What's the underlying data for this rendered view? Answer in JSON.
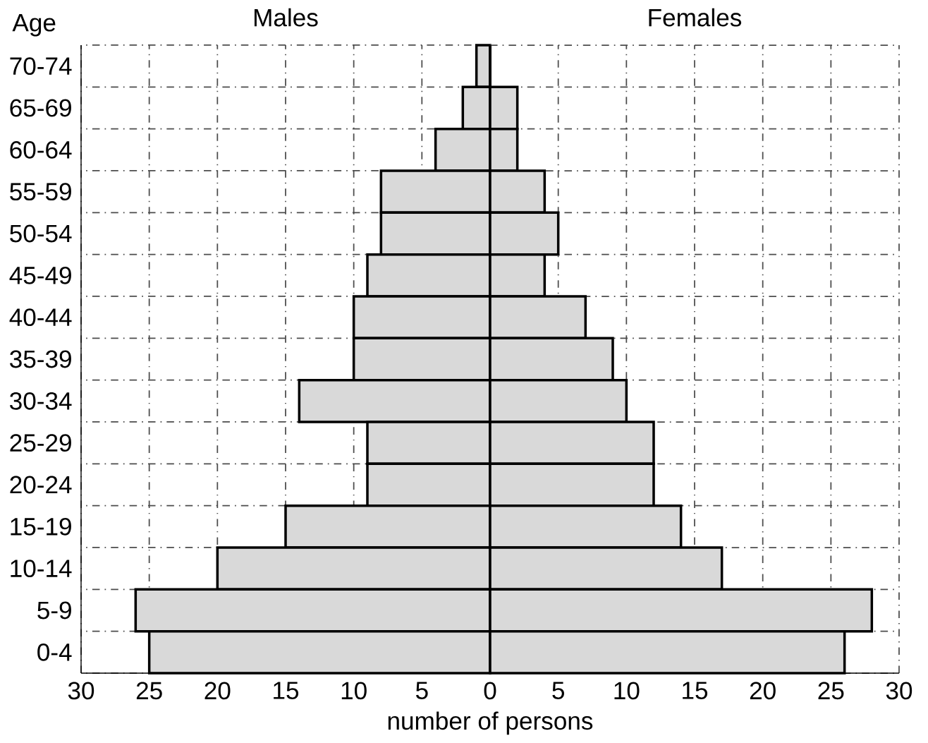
{
  "chart_data": [
    {
      "type": "bar",
      "orientation": "horizontal",
      "title": "Males",
      "ylabel": "Age",
      "xlabel": "number of persons",
      "categories": [
        "70-74",
        "65-69",
        "60-64",
        "55-59",
        "50-54",
        "45-49",
        "40-44",
        "35-39",
        "30-34",
        "25-29",
        "20-24",
        "15-19",
        "10-14",
        "5-9",
        "0-4"
      ],
      "color": "#d9d9d9",
      "values": [
        1,
        2,
        4,
        8,
        8,
        9,
        10,
        10,
        14,
        9,
        9,
        15,
        20,
        26,
        25
      ],
      "xlim": [
        30,
        0
      ],
      "xticks": [
        30,
        25,
        20,
        15,
        10,
        5,
        0
      ],
      "grid": true
    },
    {
      "type": "bar",
      "orientation": "horizontal",
      "title": "Females",
      "color": "#d9d9d9",
      "values": [
        0,
        2,
        2,
        4,
        5,
        4,
        7,
        9,
        10,
        12,
        12,
        14,
        17,
        28,
        26
      ],
      "xlim": [
        0,
        30
      ],
      "xticks": [
        5,
        10,
        15,
        20,
        25,
        30
      ],
      "grid": true,
      "tick_labels": "x"
    }
  ]
}
